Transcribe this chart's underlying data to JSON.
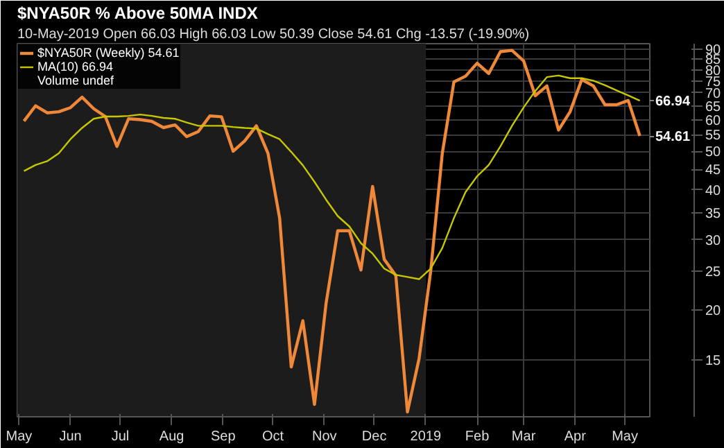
{
  "chart_data": {
    "type": "line",
    "title": "$NYA50R % Above 50MA INDX",
    "subtitle": "10-May-2019",
    "annotations": [
      "Open 66.03  High 66.03  Low 50.39  Close 54.61  Chg -13.57 (-19.90%)",
      "Volume undef"
    ],
    "series": [
      {
        "name": "$NYA50R (Weekly) 54.61",
        "color": "#f0883a",
        "values": [
          59.5,
          65.0,
          62.4,
          62.8,
          64.3,
          68.3,
          63.9,
          61.1,
          51.4,
          60.3,
          60.0,
          59.4,
          57.3,
          58.2,
          54.4,
          56.0,
          61.3,
          61.0,
          50.0,
          53.1,
          57.9,
          49.4,
          34.0,
          14.4,
          18.8,
          11.6,
          20.8,
          31.6,
          31.6,
          25.2,
          40.8,
          26.8,
          24.4,
          11.1,
          15.1,
          25.0,
          49.4,
          74.6,
          77.1,
          83.1,
          78.3,
          88.8,
          89.5,
          84.2,
          68.9,
          72.9,
          56.5,
          62.8,
          75.6,
          72.9,
          65.4,
          65.4,
          67.0,
          54.61
        ],
        "value_labels": [
          null,
          null,
          null,
          null,
          null,
          null,
          null,
          null,
          null,
          null,
          null,
          null,
          null,
          null,
          null,
          null,
          null,
          null,
          null,
          null,
          null,
          null,
          null,
          null,
          null,
          null,
          null,
          null,
          null,
          null,
          null,
          null,
          null,
          null,
          null,
          null,
          null,
          null,
          null,
          null,
          null,
          null,
          null,
          null,
          null,
          null,
          null,
          null,
          null,
          null,
          null,
          null,
          null,
          "54.61"
        ]
      },
      {
        "name": "MA(10) 66.94",
        "color": "#c8c800",
        "values": [
          44.6,
          46.2,
          47.2,
          49.4,
          53.6,
          57.2,
          60.3,
          61.1,
          61.1,
          61.3,
          61.8,
          61.3,
          60.6,
          60.3,
          59.0,
          57.9,
          57.9,
          57.9,
          57.5,
          57.2,
          57.0,
          55.2,
          53.6,
          49.8,
          46.1,
          41.9,
          37.8,
          34.4,
          32.4,
          29.4,
          27.7,
          25.4,
          24.5,
          24.2,
          23.9,
          25.4,
          28.6,
          34.0,
          39.5,
          43.3,
          46.2,
          51.4,
          57.9,
          64.4,
          70.8,
          76.7,
          77.4,
          76.2,
          76.2,
          75.1,
          73.2,
          71.0,
          69.0,
          66.94
        ],
        "value_labels": [
          null,
          null,
          null,
          null,
          null,
          null,
          null,
          null,
          null,
          null,
          null,
          null,
          null,
          null,
          null,
          null,
          null,
          null,
          null,
          null,
          null,
          null,
          null,
          null,
          null,
          null,
          null,
          null,
          null,
          null,
          null,
          null,
          null,
          null,
          null,
          null,
          null,
          null,
          null,
          null,
          null,
          null,
          null,
          null,
          null,
          null,
          null,
          null,
          null,
          null,
          null,
          null,
          null,
          "66.94"
        ]
      }
    ],
    "x": [
      "2018-05-04",
      "2018-05-11",
      "2018-05-18",
      "2018-05-25",
      "2018-06-01",
      "2018-06-08",
      "2018-06-15",
      "2018-06-22",
      "2018-06-29",
      "2018-07-06",
      "2018-07-13",
      "2018-07-20",
      "2018-07-27",
      "2018-08-03",
      "2018-08-10",
      "2018-08-17",
      "2018-08-24",
      "2018-08-31",
      "2018-09-07",
      "2018-09-14",
      "2018-09-21",
      "2018-09-28",
      "2018-10-05",
      "2018-10-12",
      "2018-10-19",
      "2018-10-26",
      "2018-11-02",
      "2018-11-09",
      "2018-11-16",
      "2018-11-23",
      "2018-11-30",
      "2018-12-07",
      "2018-12-14",
      "2018-12-21",
      "2018-12-28",
      "2019-01-04",
      "2019-01-11",
      "2019-01-18",
      "2019-01-25",
      "2019-02-01",
      "2019-02-08",
      "2019-02-15",
      "2019-02-22",
      "2019-03-01",
      "2019-03-08",
      "2019-03-15",
      "2019-03-22",
      "2019-03-29",
      "2019-04-05",
      "2019-04-12",
      "2019-04-19",
      "2019-04-26",
      "2019-05-03",
      "2019-05-10"
    ],
    "xlim": [
      "2018-04-30",
      "2019-05-16"
    ],
    "xticks": [
      {
        "value": "2018-05-01",
        "label": "May"
      },
      {
        "value": "2018-06-01",
        "label": "Jun"
      },
      {
        "value": "2018-07-01",
        "label": "Jul"
      },
      {
        "value": "2018-08-01",
        "label": "Aug"
      },
      {
        "value": "2018-09-01",
        "label": "Sep"
      },
      {
        "value": "2018-10-01",
        "label": "Oct"
      },
      {
        "value": "2018-11-01",
        "label": "Nov"
      },
      {
        "value": "2018-12-01",
        "label": "Dec"
      },
      {
        "value": "2019-01-01",
        "label": "2019"
      },
      {
        "value": "2019-02-01",
        "label": "Feb"
      },
      {
        "value": "2019-03-01",
        "label": "Mar"
      },
      {
        "value": "2019-04-01",
        "label": "Apr"
      },
      {
        "value": "2019-05-01",
        "label": "May"
      }
    ],
    "ylim": [
      10.8,
      93
    ],
    "yticks": [
      15,
      20,
      25,
      30,
      35,
      40,
      45,
      50,
      55,
      60,
      65,
      70,
      75,
      80,
      85,
      90
    ],
    "log": true,
    "bands": [
      {
        "axis": "x",
        "from": "2018-04-30",
        "to": "2019-01-01",
        "color": "#1c1c1c"
      }
    ],
    "grid": true,
    "legend": "top left",
    "line_style": "solid",
    "marker": "none"
  }
}
